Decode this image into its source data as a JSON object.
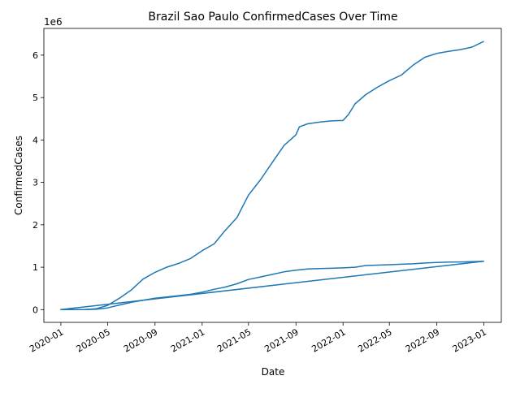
{
  "chart_data": {
    "type": "line",
    "title": "Brazil Sao Paulo ConfirmedCases Over Time",
    "xlabel": "Date",
    "ylabel": "ConfirmedCases",
    "y_offset_label": "1e6",
    "ylim": [
      -300000,
      6630000
    ],
    "y_ticks": [
      {
        "value": 0,
        "label": "0"
      },
      {
        "value": 1000000,
        "label": "1"
      },
      {
        "value": 2000000,
        "label": "2"
      },
      {
        "value": 3000000,
        "label": "3"
      },
      {
        "value": 4000000,
        "label": "4"
      },
      {
        "value": 5000000,
        "label": "5"
      },
      {
        "value": 6000000,
        "label": "6"
      }
    ],
    "xlim": [
      "2019-11-18",
      "2023-02-15"
    ],
    "x_ticks": [
      "2020-01",
      "2020-05",
      "2020-09",
      "2021-01",
      "2021-05",
      "2021-09",
      "2022-01",
      "2022-05",
      "2022-09",
      "2023-01"
    ],
    "grid": false,
    "line_color": "#1f77b4",
    "series": [
      {
        "name": "",
        "x": [
          "2020-01-01",
          "2020-03-01",
          "2020-04-01",
          "2020-05-01",
          "2020-06-01",
          "2020-07-01",
          "2020-08-01",
          "2020-09-01",
          "2020-10-01",
          "2020-11-01",
          "2020-12-01",
          "2021-01-01",
          "2021-02-01",
          "2021-03-01",
          "2021-04-01",
          "2021-05-01",
          "2021-06-01",
          "2021-07-01",
          "2021-08-01",
          "2021-09-01",
          "2021-09-10",
          "2021-10-01",
          "2021-11-01",
          "2021-12-01",
          "2022-01-01",
          "2022-01-15",
          "2022-02-01",
          "2022-03-01",
          "2022-04-01",
          "2022-05-01",
          "2022-06-01",
          "2022-07-01",
          "2022-08-01",
          "2022-09-01",
          "2022-10-01",
          "2022-11-01",
          "2022-12-01",
          "2022-12-31"
        ],
        "y": [
          0,
          2000,
          20000,
          100000,
          270000,
          460000,
          720000,
          880000,
          1000000,
          1090000,
          1200000,
          1390000,
          1550000,
          1860000,
          2170000,
          2700000,
          3060000,
          3460000,
          3870000,
          4120000,
          4310000,
          4380000,
          4420000,
          4450000,
          4460000,
          4600000,
          4850000,
          5070000,
          5250000,
          5400000,
          5530000,
          5760000,
          5950000,
          6040000,
          6090000,
          6130000,
          6190000,
          6320000
        ]
      },
      {
        "name": "",
        "x": [
          "2020-01-01",
          "2020-03-01",
          "2020-04-01",
          "2020-05-01",
          "2020-06-01",
          "2020-07-01",
          "2020-08-01",
          "2020-09-01",
          "2020-10-01",
          "2020-11-01",
          "2020-12-01",
          "2021-01-01",
          "2021-02-01",
          "2021-03-01",
          "2021-04-01",
          "2021-05-01",
          "2021-06-01",
          "2021-07-01",
          "2021-08-01",
          "2021-09-01",
          "2021-10-01",
          "2021-11-01",
          "2021-12-01",
          "2022-01-01",
          "2022-02-01",
          "2022-03-01",
          "2022-04-01",
          "2022-05-01",
          "2022-06-01",
          "2022-07-01",
          "2022-08-01",
          "2022-09-01",
          "2022-10-01",
          "2022-11-01",
          "2022-12-01",
          "2022-12-31"
        ],
        "y": [
          0,
          1000,
          8000,
          40000,
          110000,
          170000,
          220000,
          270000,
          300000,
          330000,
          360000,
          410000,
          480000,
          530000,
          610000,
          710000,
          770000,
          830000,
          890000,
          930000,
          960000,
          970000,
          975000,
          985000,
          1000000,
          1040000,
          1050000,
          1060000,
          1070000,
          1080000,
          1100000,
          1110000,
          1120000,
          1125000,
          1130000,
          1140000
        ]
      },
      {
        "name": "",
        "x": [
          "2020-01-01",
          "2022-12-31"
        ],
        "y": [
          0,
          1140000
        ]
      }
    ]
  }
}
